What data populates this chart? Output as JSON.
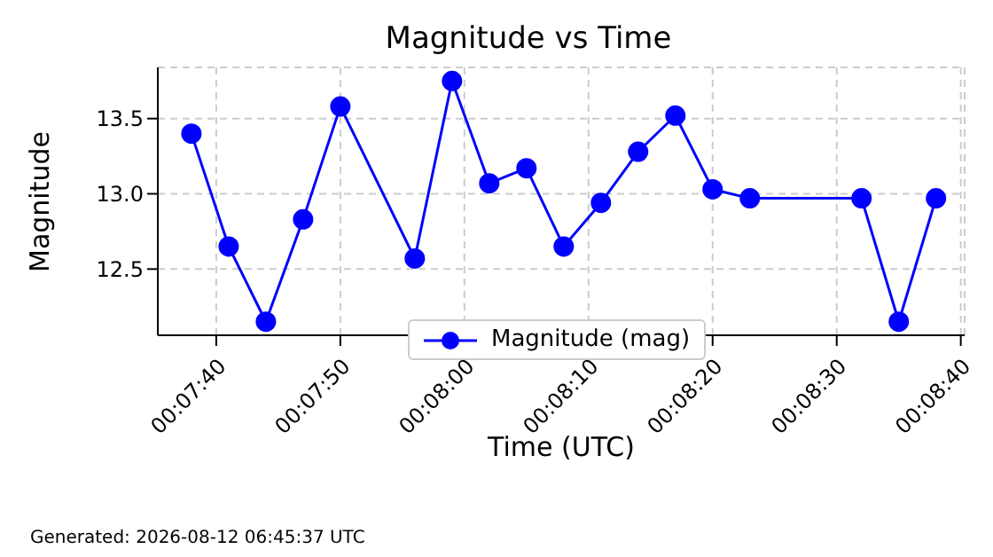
{
  "chart_data": {
    "type": "line",
    "title": "Magnitude vs Time",
    "xlabel": "Time (UTC)",
    "ylabel": "Magnitude",
    "x": [
      0.127222,
      0.128056,
      0.128889,
      0.129722,
      0.130556,
      0.132222,
      0.133056,
      0.133889,
      0.134722,
      0.135556,
      0.136389,
      0.137222,
      0.138056,
      0.138889,
      0.139722,
      0.142222,
      0.143056,
      0.143889
    ],
    "series": [
      {
        "name": "Magnitude (mag)",
        "color": "#0000ff",
        "values": [
          13.4,
          12.65,
          12.15,
          12.83,
          13.58,
          12.57,
          13.75,
          13.07,
          13.17,
          12.65,
          12.94,
          13.28,
          13.52,
          13.03,
          12.97,
          12.97,
          12.15,
          12.97
        ]
      }
    ],
    "xlim": [
      0.12647,
      0.14453
    ],
    "xticks": [
      {
        "value": 0.127778,
        "label": "00:07:40"
      },
      {
        "value": 0.130556,
        "label": "00:07:50"
      },
      {
        "value": 0.133333,
        "label": "00:08:00"
      },
      {
        "value": 0.136111,
        "label": "00:08:10"
      },
      {
        "value": 0.138889,
        "label": "00:08:20"
      },
      {
        "value": 0.141667,
        "label": "00:08:30"
      },
      {
        "value": 0.144444,
        "label": "00:08:40"
      }
    ],
    "ylim": [
      12.06,
      13.84
    ],
    "yticks": [
      {
        "value": 12.5,
        "label": "12.5"
      },
      {
        "value": 13.0,
        "label": "13.0"
      },
      {
        "value": 13.5,
        "label": "13.5"
      }
    ],
    "grid": true,
    "line_style": "solid",
    "marker": "circle",
    "legend": "bottom",
    "annotations": [
      "Generated: 2026-08-12 06:45:37 UTC"
    ]
  }
}
